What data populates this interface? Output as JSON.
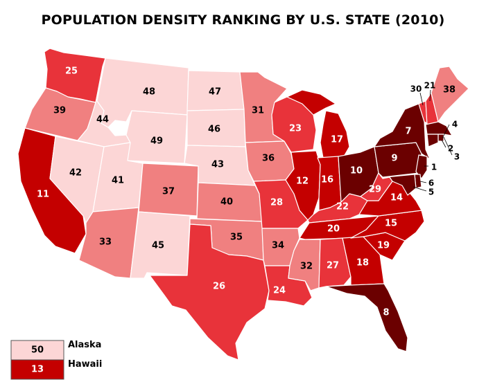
{
  "title": "POPULATION DENSITY RANKING BY U.S. STATE (2010)",
  "color_scale": {
    "1-10": "#6b0000",
    "11-20": "#c40000",
    "21-30": "#e8333a",
    "31-40": "#f08080",
    "41-50": "#fcd6d6",
    "border": "#ffffff"
  },
  "states": [
    {
      "state": "Washington",
      "rank": "25"
    },
    {
      "state": "Oregon",
      "rank": "39"
    },
    {
      "state": "California",
      "rank": "11"
    },
    {
      "state": "Idaho",
      "rank": "44"
    },
    {
      "state": "Nevada",
      "rank": "42"
    },
    {
      "state": "Montana",
      "rank": "48"
    },
    {
      "state": "Wyoming",
      "rank": "49"
    },
    {
      "state": "Utah",
      "rank": "41"
    },
    {
      "state": "Arizona",
      "rank": "33"
    },
    {
      "state": "Colorado",
      "rank": "37"
    },
    {
      "state": "New Mexico",
      "rank": "45"
    },
    {
      "state": "North Dakota",
      "rank": "47"
    },
    {
      "state": "South Dakota",
      "rank": "46"
    },
    {
      "state": "Nebraska",
      "rank": "43"
    },
    {
      "state": "Kansas",
      "rank": "40"
    },
    {
      "state": "Oklahoma",
      "rank": "35"
    },
    {
      "state": "Texas",
      "rank": "26"
    },
    {
      "state": "Minnesota",
      "rank": "31"
    },
    {
      "state": "Iowa",
      "rank": "36"
    },
    {
      "state": "Missouri",
      "rank": "28"
    },
    {
      "state": "Arkansas",
      "rank": "34"
    },
    {
      "state": "Louisiana",
      "rank": "24"
    },
    {
      "state": "Wisconsin",
      "rank": "23"
    },
    {
      "state": "Illinois",
      "rank": "12"
    },
    {
      "state": "Michigan",
      "rank": "17"
    },
    {
      "state": "Indiana",
      "rank": "16"
    },
    {
      "state": "Ohio",
      "rank": "10"
    },
    {
      "state": "Kentucky",
      "rank": "22"
    },
    {
      "state": "Tennessee",
      "rank": "20"
    },
    {
      "state": "Mississippi",
      "rank": "32"
    },
    {
      "state": "Alabama",
      "rank": "27"
    },
    {
      "state": "Georgia",
      "rank": "18"
    },
    {
      "state": "Florida",
      "rank": "8"
    },
    {
      "state": "South Carolina",
      "rank": "19"
    },
    {
      "state": "North Carolina",
      "rank": "15"
    },
    {
      "state": "Virginia",
      "rank": "14"
    },
    {
      "state": "West Virginia",
      "rank": "29"
    },
    {
      "state": "Pennsylvania",
      "rank": "9"
    },
    {
      "state": "New York",
      "rank": "7"
    },
    {
      "state": "Vermont",
      "rank": "30"
    },
    {
      "state": "New Hampshire",
      "rank": "21"
    },
    {
      "state": "Maine",
      "rank": "38"
    },
    {
      "state": "Massachusetts",
      "rank": "3"
    },
    {
      "state": "Rhode Island",
      "rank": "2"
    },
    {
      "state": "Connecticut",
      "rank": "4"
    },
    {
      "state": "New Jersey",
      "rank": "1"
    },
    {
      "state": "Delaware",
      "rank": "6"
    },
    {
      "state": "Maryland",
      "rank": "5"
    }
  ],
  "insets": [
    {
      "state": "Alaska",
      "name": "Alaska",
      "rank": "50"
    },
    {
      "state": "Hawaii",
      "name": "Hawaii",
      "rank": "13"
    }
  ]
}
